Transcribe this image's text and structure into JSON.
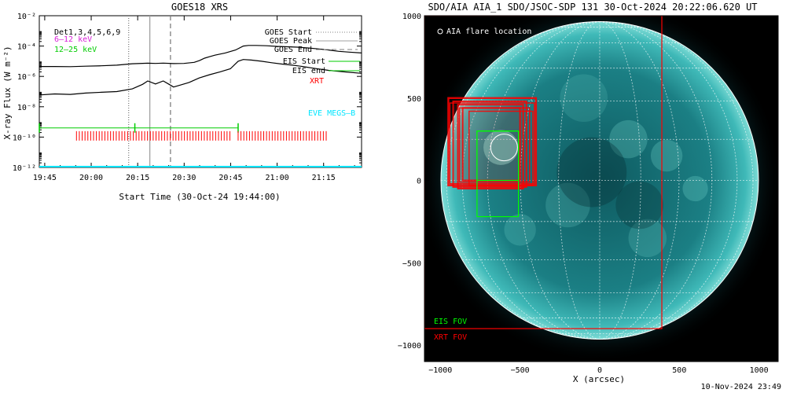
{
  "chart_data": [
    {
      "type": "line",
      "title": "GOES18 XRS",
      "xlabel": "Start Time (30-Oct-24 19:44:00)",
      "ylabel": "X-ray Flux (W m⁻²)",
      "x_tick_labels": [
        "19:45",
        "20:00",
        "20:15",
        "20:30",
        "20:45",
        "21:00",
        "21:15"
      ],
      "x_ticks_min": [
        105,
        1005,
        1905,
        2805,
        3705,
        4605,
        5505
      ],
      "xlim_min": [
        0,
        6240
      ],
      "y_scale": "log",
      "ylim": [
        1e-12,
        0.01
      ],
      "y_tick_labels": [
        "10⁻¹²",
        "10⁻¹⁰",
        "10⁻⁸",
        "10⁻⁶",
        "10⁻⁴",
        "10⁻²"
      ],
      "y_tick_values": [
        1e-12,
        1e-10,
        1e-08,
        1e-06,
        0.0001,
        0.01
      ],
      "series": [
        {
          "name": "long",
          "color": "#000000",
          "x_min": [
            0,
            300,
            600,
            900,
            1200,
            1500,
            1800,
            2100,
            2250,
            2400,
            2600,
            2800,
            3000,
            3100,
            3200,
            3300,
            3400,
            3600,
            3800,
            3950,
            4050,
            4200,
            4400,
            4600,
            4800,
            5000,
            5200,
            5400,
            5600,
            5800,
            6000,
            6240
          ],
          "y": [
            4.5e-06,
            4.5e-06,
            4.4e-06,
            4.7e-06,
            5e-06,
            5.5e-06,
            6.8e-06,
            7.4e-06,
            7.2e-06,
            7.5e-06,
            7e-06,
            7.2e-06,
            8.5e-06,
            1.1e-05,
            1.6e-05,
            2e-05,
            2.5e-05,
            3.5e-05,
            5.5e-05,
            0.0001,
            0.00011,
            0.00011,
            0.000105,
            9.5e-05,
            9e-05,
            8.5e-05,
            7.5e-05,
            6.5e-05,
            5.5e-05,
            4.5e-05,
            4e-05,
            3.5e-05
          ]
        },
        {
          "name": "short",
          "color": "#000000",
          "x_min": [
            0,
            300,
            600,
            900,
            1200,
            1500,
            1800,
            2000,
            2100,
            2250,
            2400,
            2500,
            2600,
            2700,
            2900,
            3100,
            3300,
            3500,
            3700,
            3850,
            3950,
            4100,
            4300,
            4500,
            4700,
            4900,
            5100,
            5300,
            5600,
            5900,
            6240
          ],
          "y": [
            6e-08,
            7e-08,
            6.5e-08,
            8e-08,
            9e-08,
            1e-07,
            1.5e-07,
            3e-07,
            5e-07,
            3.2e-07,
            5e-07,
            3.2e-07,
            2e-07,
            2.5e-07,
            4e-07,
            8e-07,
            1.3e-06,
            2e-06,
            3.2e-06,
            1e-05,
            1.3e-05,
            1.2e-05,
            1e-05,
            8e-06,
            6.5e-06,
            5.5e-06,
            4.5e-06,
            3.5e-06,
            2.5e-06,
            2e-06,
            1.6e-06
          ]
        }
      ],
      "vertical_lines": [
        {
          "label": "GOES Start",
          "x_min": 1730,
          "style": "dotted",
          "color": "#808080"
        },
        {
          "label": "GOES Peak",
          "x_min": 2140,
          "style": "solid",
          "color": "#a0a0a0"
        },
        {
          "label": "GOES End",
          "x_min": 2540,
          "style": "dashed",
          "color": "#808080"
        }
      ],
      "legend": {
        "placement": "top-left and top-right",
        "left": [
          {
            "text": "Det1,3,4,5,6,9",
            "color": "#000000"
          },
          {
            "text": "6–12 keV",
            "color": "#d81fd8"
          },
          {
            "text": "12–25 keV",
            "color": "#00cc00"
          }
        ],
        "right": [
          {
            "text": "GOES Start",
            "color": "#000000"
          },
          {
            "text": "GOES Peak",
            "color": "#000000"
          },
          {
            "text": "GOES End",
            "color": "#000000"
          },
          {
            "text": "EIS Start",
            "color": "#000000"
          },
          {
            "text": "EIS end",
            "color": "#000000"
          },
          {
            "text": "XRT",
            "color": "#ff0000"
          }
        ],
        "eve_label": {
          "text": "EVE MEGS–B",
          "color": "#00e5ff"
        }
      },
      "eis_interval": {
        "start_min": 0,
        "end_min": 3850,
        "y": 4e-10,
        "color": "#00cc00"
      },
      "xrt_intervals_min": [
        [
          720,
          3720
        ],
        [
          3850,
          5600
        ]
      ],
      "xrt_y": 1.2e-10,
      "xrt_color": "#ff0000",
      "eve_line": {
        "y": 1e-12,
        "color": "#00e5ff"
      }
    },
    {
      "type": "image",
      "title": "SDO/AIA AIA_1 SDO/JSOC-SDP 131 30-Oct-2024 20:22:06.620 UT",
      "xlabel": "X (arcsec)",
      "xlim": [
        -1100,
        1120
      ],
      "ylim": [
        -1100,
        1000
      ],
      "x_ticks": [
        -1000,
        -500,
        0,
        500,
        1000
      ],
      "y_ticks": [
        1000,
        500,
        0,
        -500,
        -1000
      ],
      "x_tick_labels": [
        "−1000",
        "−500",
        "0",
        "500",
        "1000"
      ],
      "y_tick_labels": [
        "1000",
        "500",
        "0",
        "−500",
        "−1000"
      ],
      "solar_radius_arcsec": 980,
      "flare_location_label": "AIA flare location",
      "flare_location_arcsec": [
        -600,
        200
      ],
      "eis_fov_label": "EIS FOV",
      "xrt_fov_label": "XRT FOV",
      "eis_color": "#00ff00",
      "xrt_color": "#ff0000"
    }
  ],
  "footer": {
    "timestamp": "10-Nov-2024 23:49"
  }
}
